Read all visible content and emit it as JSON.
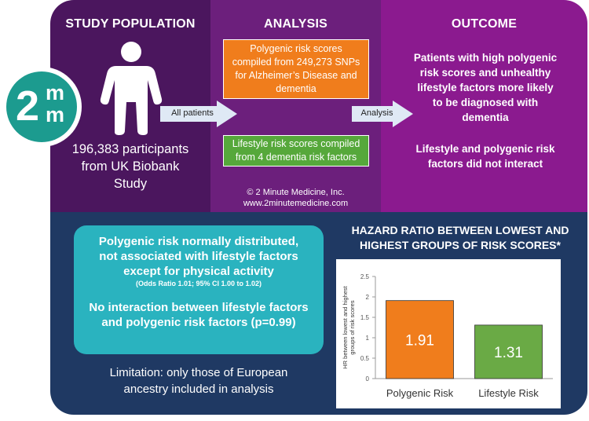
{
  "logo": {
    "text_big": "2",
    "text_m1": "m",
    "text_m2": "m",
    "brand_color": "#1c9b8f"
  },
  "study": {
    "title": "STUDY POPULATION",
    "participants_line1": "196,383 participants",
    "participants_line2": "from UK Biobank",
    "participants_line3": "Study",
    "icon": "person-icon"
  },
  "analysis": {
    "title": "ANALYSIS",
    "polygenic_line1": "Polygenic risk scores",
    "polygenic_line2": "compiled from 249,273 SNPs",
    "polygenic_line3": "for Alzheimer’s Disease and",
    "polygenic_line4": "dementia",
    "lifestyle_line1": "Lifestyle risk scores compiled",
    "lifestyle_line2": "from 4 dementia risk factors",
    "copyright": "© 2 Minute Medicine, Inc.",
    "website": "www.2minutemedicine.com",
    "arrow_all_patients": "All patients",
    "arrow_analysis": "Analysis"
  },
  "outcome": {
    "title": "OUTCOME",
    "finding1_line1": "Patients with high polygenic",
    "finding1_line2": "risk scores and unhealthy",
    "finding1_line3": "lifestyle factors more likely",
    "finding1_line4": "to be diagnosed with",
    "finding1_line5": "dementia",
    "finding2_line1": "Lifestyle and polygenic risk",
    "finding2_line2": "factors did not interact"
  },
  "results": {
    "line1": "Polygenic risk normally distributed,",
    "line2": "not associated with lifestyle factors",
    "line3": "except for physical activity",
    "odds": "(Odds Ratio 1.01; 95% CI 1.00 to 1.02)",
    "line4": "No interaction between lifestyle factors",
    "line5": "and polygenic risk factors (p=0.99)",
    "limitation_line1": "Limitation: only those of European",
    "limitation_line2": "ancestry included in analysis"
  },
  "chart_title_line1": "HAZARD RATIO BETWEEN LOWEST AND",
  "chart_title_line2": "HIGHEST GROUPS OF RISK SCORES*",
  "chart_data": {
    "type": "bar",
    "categories": [
      "Polygenic Risk",
      "Lifestyle Risk"
    ],
    "values": [
      1.91,
      1.31
    ],
    "value_labels": [
      "1.91",
      "1.31"
    ],
    "colors": [
      "#f07d1c",
      "#6aaa45"
    ],
    "ylabel_line1": "HR between lowest and highest",
    "ylabel_line2": "groups of risk scores",
    "ylim": [
      0,
      2.5
    ],
    "yticks": [
      0,
      0.5,
      1,
      1.5,
      2,
      2.5
    ],
    "ytick_labels": [
      "0",
      "0.5",
      "1",
      "1.5",
      "2",
      "2.5"
    ],
    "grid": false
  },
  "colors": {
    "study_bg": "#4b165e",
    "analysis_bg": "#6c1f7c",
    "outcome_bg": "#8b1a8f",
    "bottom_bg": "#1f3963",
    "teal_box": "#2ab3bf",
    "orange_box": "#f07d1c",
    "green_box": "#56a83b"
  }
}
